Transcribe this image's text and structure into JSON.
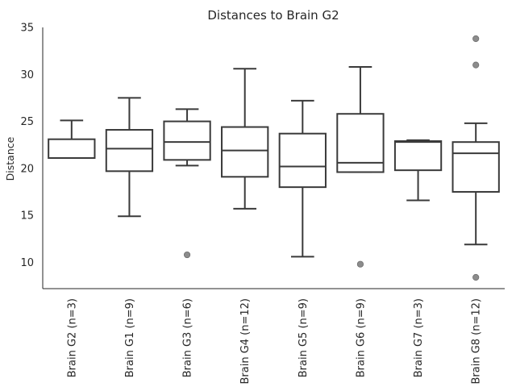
{
  "chart_data": {
    "type": "box",
    "title": "Distances to Brain G2",
    "xlabel": "",
    "ylabel": "Distance",
    "ylim": [
      7.2,
      35
    ],
    "yticks": [
      10,
      15,
      20,
      25,
      30,
      35
    ],
    "grid": false,
    "colors": {
      "box_edge": "#3a3a3a",
      "box_fill": "#ffffff",
      "outlier": "#8c8c8c",
      "axis": "#262626"
    },
    "categories": [
      "Brain G2 (n=3)",
      "Brain G1 (n=9)",
      "Brain G3 (n=6)",
      "Brain G4 (n=12)",
      "Brain G5 (n=9)",
      "Brain G6 (n=9)",
      "Brain G7 (n=3)",
      "Brain G8 (n=12)"
    ],
    "boxes": [
      {
        "category": "Brain G2 (n=3)",
        "whisker_low": 21.1,
        "q1": 21.1,
        "median": 21.1,
        "q3": 23.1,
        "whisker_high": 25.1,
        "outliers": []
      },
      {
        "category": "Brain G1 (n=9)",
        "whisker_low": 14.9,
        "q1": 19.7,
        "median": 22.1,
        "q3": 24.1,
        "whisker_high": 27.5,
        "outliers": []
      },
      {
        "category": "Brain G3 (n=6)",
        "whisker_low": 20.3,
        "q1": 20.9,
        "median": 22.8,
        "q3": 25.0,
        "whisker_high": 26.3,
        "outliers": [
          10.8
        ]
      },
      {
        "category": "Brain G4 (n=12)",
        "whisker_low": 15.7,
        "q1": 19.1,
        "median": 21.9,
        "q3": 24.4,
        "whisker_high": 30.6,
        "outliers": []
      },
      {
        "category": "Brain G5 (n=9)",
        "whisker_low": 10.6,
        "q1": 18.0,
        "median": 20.2,
        "q3": 23.7,
        "whisker_high": 27.2,
        "outliers": []
      },
      {
        "category": "Brain G6 (n=9)",
        "whisker_low": 19.6,
        "q1": 19.6,
        "median": 20.6,
        "q3": 25.8,
        "whisker_high": 30.8,
        "outliers": [
          9.8
        ]
      },
      {
        "category": "Brain G7 (n=3)",
        "whisker_low": 16.6,
        "q1": 19.8,
        "median": 22.8,
        "q3": 22.9,
        "whisker_high": 23.0,
        "outliers": []
      },
      {
        "category": "Brain G8 (n=12)",
        "whisker_low": 11.9,
        "q1": 17.5,
        "median": 21.6,
        "q3": 22.8,
        "whisker_high": 24.8,
        "outliers": [
          33.8,
          31.0,
          8.4
        ]
      }
    ]
  }
}
